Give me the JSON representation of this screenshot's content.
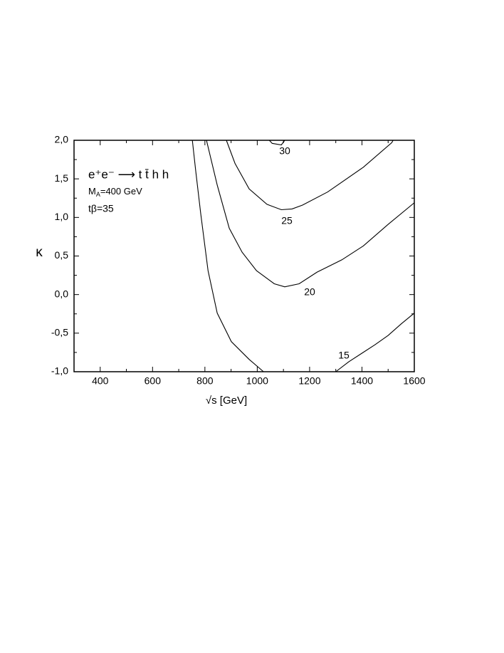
{
  "chart_data": {
    "type": "contour",
    "annotations": {
      "process": "e⁺e⁻ ⟶ t t̄ h h",
      "mass": [
        "M",
        "A",
        "=400 GeV"
      ],
      "tanbeta": "tβ=35"
    },
    "x_label": "√s [GeV]",
    "y_label": "κ",
    "xlim": [
      300,
      1600
    ],
    "ylim": [
      -1.0,
      2.0
    ],
    "xticks": [
      400,
      600,
      800,
      1000,
      1200,
      1400,
      1600
    ],
    "yticks": [
      {
        "value": -1.0,
        "label": "-1,0"
      },
      {
        "value": -0.5,
        "label": "-0,5"
      },
      {
        "value": 0.0,
        "label": "0,0"
      },
      {
        "value": 0.5,
        "label": "0,5"
      },
      {
        "value": 1.0,
        "label": "1,0"
      },
      {
        "value": 1.5,
        "label": "1,5"
      },
      {
        "value": 2.0,
        "label": "2,0"
      }
    ],
    "color": "#000000",
    "contours": [
      {
        "label": null,
        "x": [
          752,
          765,
          784,
          812,
          847,
          901,
          969,
          1024
        ],
        "y": [
          2.0,
          1.6,
          1.05,
          0.31,
          -0.24,
          -0.61,
          -0.84,
          -1.0
        ]
      },
      {
        "label": "15",
        "x": [
          1300,
          1350,
          1400,
          1450,
          1500,
          1550,
          1600
        ],
        "y": [
          -1.0,
          -0.87,
          -0.76,
          -0.65,
          -0.53,
          -0.38,
          -0.24
        ]
      },
      {
        "label": "20",
        "x": [
          806,
          847,
          893,
          942,
          997,
          1065,
          1105,
          1160,
          1228,
          1323,
          1405,
          1500,
          1600
        ],
        "y": [
          2.0,
          1.42,
          0.86,
          0.55,
          0.31,
          0.14,
          0.1,
          0.14,
          0.29,
          0.45,
          0.63,
          0.91,
          1.19
        ]
      },
      {
        "label": "25",
        "x": [
          882,
          915,
          969,
          1037,
          1092,
          1133,
          1173,
          1269,
          1405,
          1514,
          1519
        ],
        "y": [
          2.0,
          1.7,
          1.37,
          1.17,
          1.1,
          1.11,
          1.16,
          1.33,
          1.65,
          1.97,
          2.0
        ]
      },
      {
        "label": "30",
        "x": [
          1046,
          1057,
          1092,
          1105
        ],
        "y": [
          2.0,
          1.96,
          1.94,
          2.0
        ]
      }
    ]
  }
}
